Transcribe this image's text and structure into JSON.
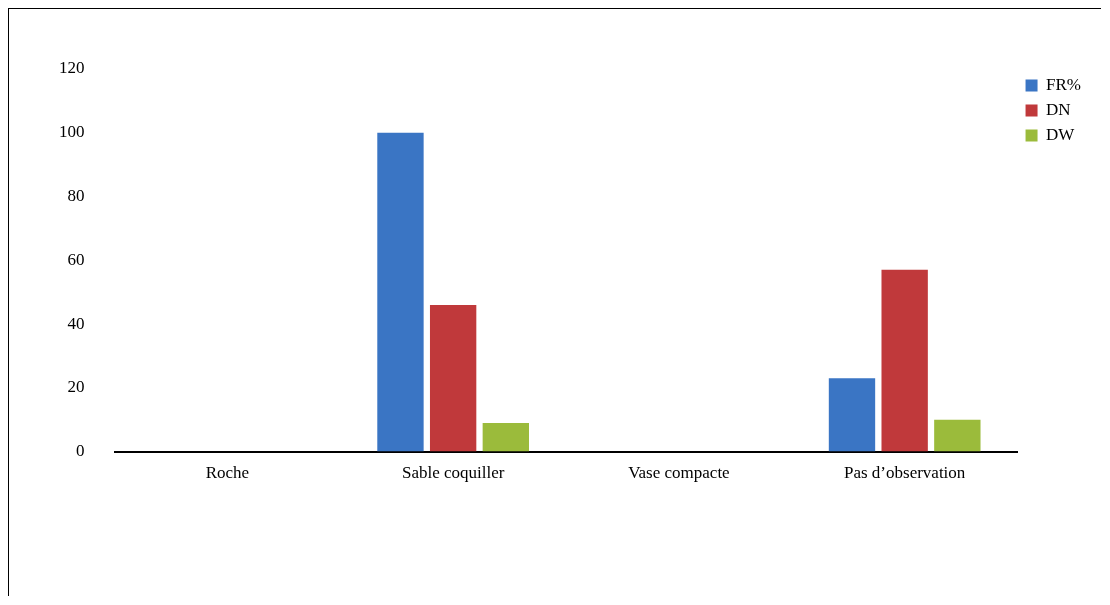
{
  "chart_data": {
    "type": "bar",
    "categories": [
      "Roche",
      "Sable coquiller",
      "Vase compacte",
      "Pas d’observation"
    ],
    "series": [
      {
        "name": "FR%",
        "color": "#3a75c4",
        "values": [
          0,
          100,
          0,
          23
        ]
      },
      {
        "name": "DN",
        "color": "#c0393b",
        "values": [
          0,
          46,
          0,
          57
        ]
      },
      {
        "name": "DW",
        "color": "#9bbb3b",
        "values": [
          0,
          9,
          0,
          10
        ]
      }
    ],
    "ylim": [
      0,
      120
    ],
    "yticks": [
      0,
      20,
      40,
      60,
      80,
      100,
      120
    ],
    "grid": false,
    "legend": "top right"
  }
}
